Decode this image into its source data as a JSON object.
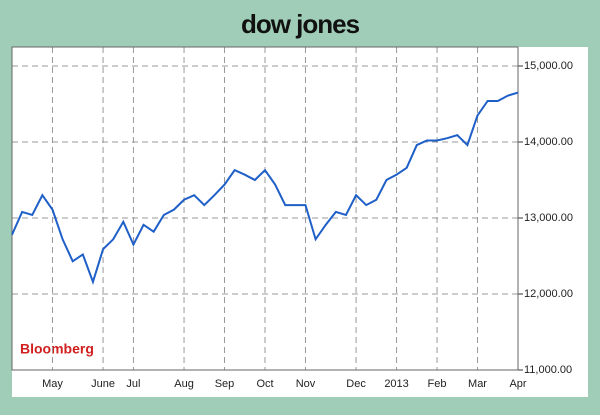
{
  "chart_data": {
    "type": "line",
    "title": "dow jones",
    "annotation": "Bloomberg",
    "categories": [
      null,
      null,
      null,
      null,
      "May",
      null,
      null,
      null,
      null,
      "June",
      null,
      null,
      "Jul",
      null,
      null,
      null,
      null,
      "Aug",
      null,
      null,
      null,
      "Sep",
      null,
      null,
      null,
      "Oct",
      null,
      null,
      null,
      "Nov",
      null,
      null,
      null,
      null,
      "Dec",
      null,
      null,
      null,
      "2013",
      null,
      null,
      null,
      "Feb",
      null,
      null,
      null,
      "Mar",
      null,
      null,
      null,
      "Apr"
    ],
    "series": [
      {
        "name": "Dow Jones",
        "color": "#1f5fc8",
        "values": [
          12780,
          13080,
          13040,
          13300,
          13110,
          12720,
          12430,
          12520,
          12160,
          12590,
          12720,
          12950,
          12650,
          12910,
          12820,
          13040,
          13110,
          13240,
          13300,
          13170,
          13300,
          13440,
          13630,
          13570,
          13500,
          13630,
          13440,
          13170,
          13170,
          13170,
          12720,
          12910,
          13080,
          13040,
          13300,
          13170,
          13240,
          13500,
          13570,
          13660,
          13960,
          14020,
          14020,
          14050,
          14090,
          13960,
          14350,
          14540,
          14540,
          14610,
          14650
        ]
      }
    ],
    "ylim": [
      11000,
      15250
    ],
    "yticks": [
      {
        "value": 11000,
        "label": "11,000.00"
      },
      {
        "value": 12000,
        "label": "12,000.00"
      },
      {
        "value": 13000,
        "label": "13,000.00"
      },
      {
        "value": 14000,
        "label": "14,000.00"
      },
      {
        "value": 15000,
        "label": "15,000.00"
      }
    ],
    "grid": true
  }
}
